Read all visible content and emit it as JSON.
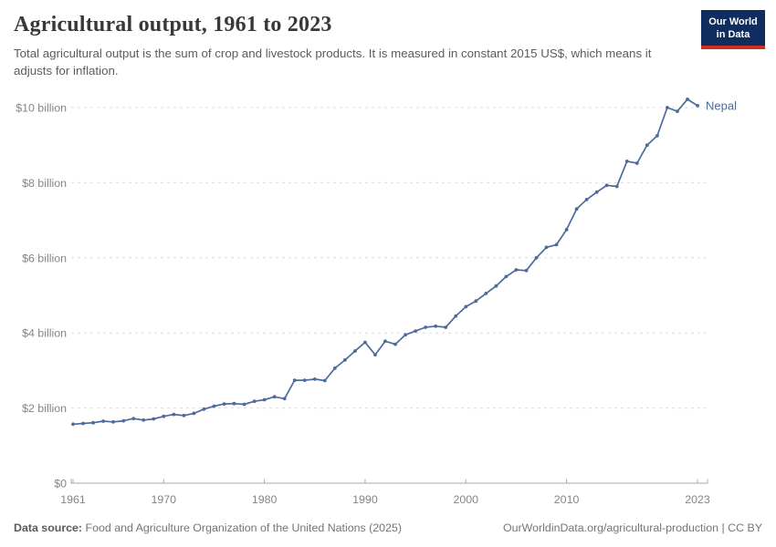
{
  "header": {
    "title": "Agricultural output, 1961 to 2023",
    "subtitle": "Total agricultural output is the sum of crop and livestock products. It is measured in constant 2015 US$, which means it adjusts for inflation."
  },
  "logo": {
    "line1": "Our World",
    "line2": "in Data",
    "bg_color": "#102d5f",
    "accent_color": "#d62b1f"
  },
  "chart_data": {
    "type": "line",
    "title": "Agricultural output, 1961 to 2023",
    "unit": "constant 2015 US$ (billions)",
    "x_range": [
      1961,
      2023
    ],
    "x_step": 1,
    "xticks": [
      1961,
      1970,
      1980,
      1990,
      2000,
      2010,
      2023
    ],
    "yticks": [
      {
        "value": 0,
        "label": "$0"
      },
      {
        "value": 2,
        "label": "$2 billion"
      },
      {
        "value": 4,
        "label": "$4 billion"
      },
      {
        "value": 6,
        "label": "$6 billion"
      },
      {
        "value": 8,
        "label": "$8 billion"
      },
      {
        "value": 10,
        "label": "$10 billion"
      }
    ],
    "ylim": [
      0,
      10.5
    ],
    "grid": "horizontal-dashed",
    "legend_position": "end-of-line-label",
    "series": [
      {
        "name": "Nepal",
        "color": "#4c6a9c",
        "years": [
          1961,
          1962,
          1963,
          1964,
          1965,
          1966,
          1967,
          1968,
          1969,
          1970,
          1971,
          1972,
          1973,
          1974,
          1975,
          1976,
          1977,
          1978,
          1979,
          1980,
          1981,
          1982,
          1983,
          1984,
          1985,
          1986,
          1987,
          1988,
          1989,
          1990,
          1991,
          1992,
          1993,
          1994,
          1995,
          1996,
          1997,
          1998,
          1999,
          2000,
          2001,
          2002,
          2003,
          2004,
          2005,
          2006,
          2007,
          2008,
          2009,
          2010,
          2011,
          2012,
          2013,
          2014,
          2015,
          2016,
          2017,
          2018,
          2019,
          2020,
          2021,
          2022,
          2023
        ],
        "values": [
          1.57,
          1.59,
          1.61,
          1.65,
          1.63,
          1.66,
          1.72,
          1.68,
          1.71,
          1.78,
          1.83,
          1.8,
          1.86,
          1.97,
          2.05,
          2.11,
          2.12,
          2.1,
          2.18,
          2.22,
          2.3,
          2.25,
          2.74,
          2.74,
          2.77,
          2.73,
          3.06,
          3.28,
          3.52,
          3.75,
          3.42,
          3.78,
          3.7,
          3.95,
          4.05,
          4.15,
          4.18,
          4.15,
          4.45,
          4.7,
          4.85,
          5.05,
          5.25,
          5.5,
          5.68,
          5.66,
          6.0,
          6.28,
          6.35,
          6.75,
          7.3,
          7.55,
          7.75,
          7.93,
          7.9,
          8.57,
          8.52,
          9.0,
          9.25,
          10.0,
          9.9,
          10.22,
          10.05
        ]
      }
    ]
  },
  "footer": {
    "source_label": "Data source:",
    "source_text": "Food and Agriculture Organization of the United Nations (2025)",
    "link_text": "OurWorldinData.org/agricultural-production | CC BY"
  }
}
